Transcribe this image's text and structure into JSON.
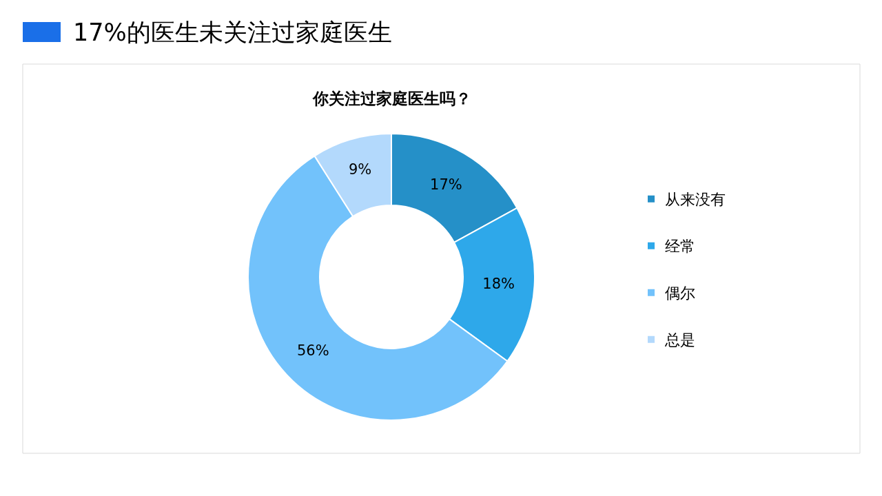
{
  "chart_data": {
    "type": "donut",
    "title": "17%的医生未关注过家庭医生",
    "subtitle": "你关注过家庭医生吗？",
    "categories": [
      "从来没有",
      "经常",
      "偶尔",
      "总是"
    ],
    "values": [
      17,
      18,
      56,
      9
    ],
    "value_labels": [
      "17%",
      "18%",
      "56%",
      "9%"
    ],
    "colors": [
      "#2590c8",
      "#2ea8ea",
      "#72c2fb",
      "#b3d9fc"
    ],
    "legend": "right"
  }
}
